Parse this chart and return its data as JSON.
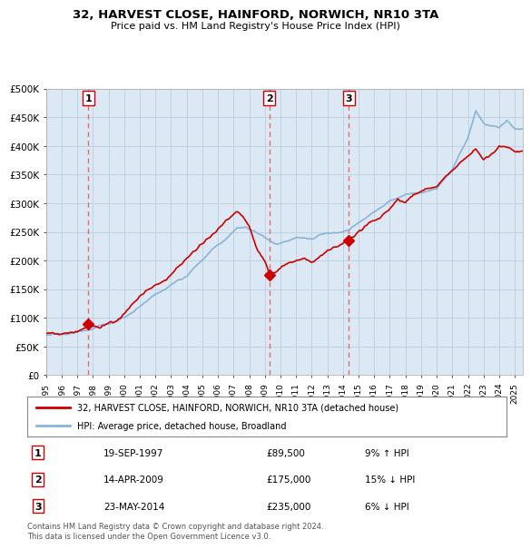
{
  "title": "32, HARVEST CLOSE, HAINFORD, NORWICH, NR10 3TA",
  "subtitle": "Price paid vs. HM Land Registry's House Price Index (HPI)",
  "ylim": [
    0,
    500000
  ],
  "yticks": [
    0,
    50000,
    100000,
    150000,
    200000,
    250000,
    300000,
    350000,
    400000,
    450000,
    500000
  ],
  "ytick_labels": [
    "£0",
    "£50K",
    "£100K",
    "£150K",
    "£200K",
    "£250K",
    "£300K",
    "£350K",
    "£400K",
    "£450K",
    "£500K"
  ],
  "sale_prices": [
    89500,
    175000,
    235000
  ],
  "sale_labels": [
    "1",
    "2",
    "3"
  ],
  "sale_years_float": [
    1997.71,
    2009.29,
    2014.37
  ],
  "sale_info": [
    {
      "label": "1",
      "date": "19-SEP-1997",
      "price": "£89,500",
      "hpi": "9% ↑ HPI"
    },
    {
      "label": "2",
      "date": "14-APR-2009",
      "price": "£175,000",
      "hpi": "15% ↓ HPI"
    },
    {
      "label": "3",
      "date": "23-MAY-2014",
      "price": "£235,000",
      "hpi": "6% ↓ HPI"
    }
  ],
  "legend_line1": "32, HARVEST CLOSE, HAINFORD, NORWICH, NR10 3TA (detached house)",
  "legend_line2": "HPI: Average price, detached house, Broadland",
  "footnote": "Contains HM Land Registry data © Crown copyright and database right 2024.\nThis data is licensed under the Open Government Licence v3.0.",
  "price_line_color": "#cc0000",
  "hpi_line_color": "#88b4d8",
  "sale_marker_color": "#cc0000",
  "dashed_line_color": "#e06060",
  "chart_bg_color": "#dce8f4",
  "background_color": "#ffffff",
  "grid_color": "#b8cfe0",
  "xstart_year": 1995,
  "xend_year": 2025
}
